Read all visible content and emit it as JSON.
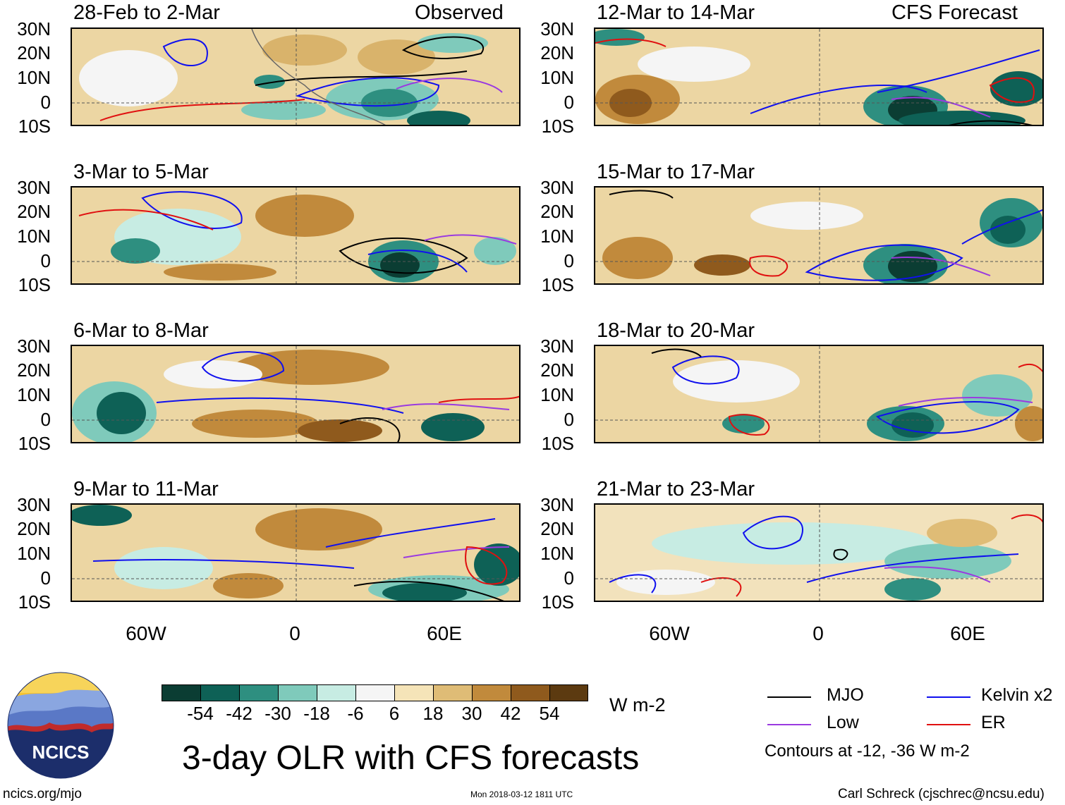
{
  "observed_label": "Observed",
  "forecast_label": "CFS Forecast",
  "panels": [
    {
      "period": "28-Feb to 2-Mar"
    },
    {
      "period": "3-Mar to 5-Mar"
    },
    {
      "period": "6-Mar to 8-Mar"
    },
    {
      "period": "9-Mar to 11-Mar"
    },
    {
      "period": "12-Mar to 14-Mar"
    },
    {
      "period": "15-Mar to 17-Mar"
    },
    {
      "period": "18-Mar to 20-Mar"
    },
    {
      "period": "21-Mar to 23-Mar"
    }
  ],
  "lat_labels": [
    "30N",
    "20N",
    "10N",
    "0",
    "10S"
  ],
  "lon_labels": [
    "60W",
    "0",
    "60E"
  ],
  "colorbar": {
    "ticks": [
      "-54",
      "-42",
      "-30",
      "-18",
      "-6",
      "6",
      "18",
      "30",
      "42",
      "54"
    ],
    "colors": [
      "#0b3d33",
      "#0e6156",
      "#2e8f80",
      "#7fcabb",
      "#c7ece3",
      "#f5f5f5",
      "#f5e4b8",
      "#dfbc76",
      "#c18a3c",
      "#8f5a1d",
      "#5c3a10"
    ],
    "units": "W m-2"
  },
  "main_title": "3-day OLR with CFS forecasts",
  "legend": {
    "items": [
      {
        "label": "MJO",
        "color": "#000000"
      },
      {
        "label": "Kelvin x2",
        "color": "#1010ee"
      },
      {
        "label": "Low",
        "color": "#9a3ae0"
      },
      {
        "label": "ER",
        "color": "#e01010"
      }
    ],
    "note": "Contours at -12, -36 W m-2"
  },
  "logo_text": "NCICS",
  "footer": {
    "left": "ncics.org/mjo",
    "center": "Mon 2018-03-12 1811 UTC",
    "right": "Carl Schreck (cjschrec@ncsu.edu)"
  }
}
